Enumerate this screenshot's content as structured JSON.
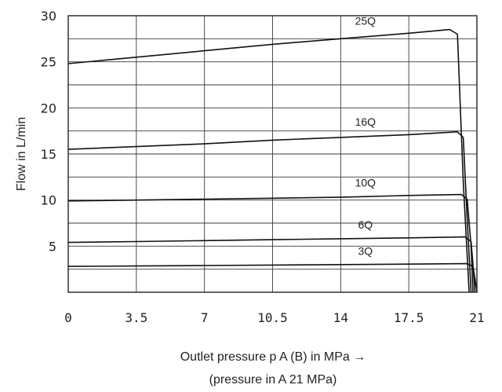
{
  "chart_data": {
    "type": "line",
    "title": "",
    "xlabel": "Outlet pressure p A (B) in MPa →",
    "xlabel_note": "(pressure in A 21 MPa)",
    "ylabel": "Flow in L/min",
    "xlim": [
      0,
      21
    ],
    "ylim": [
      0,
      30
    ],
    "x_ticks": [
      0,
      3.5,
      7,
      10.5,
      14,
      17.5,
      21
    ],
    "x_tick_labels": [
      "0",
      "3.5",
      "7",
      "10.5",
      "14",
      "17.5",
      "21"
    ],
    "y_ticks": [
      5,
      10,
      15,
      20,
      25,
      30
    ],
    "y_tick_labels": [
      "5",
      "10",
      "15",
      "20",
      "25",
      "30"
    ],
    "x_grid": [
      3.5,
      7,
      10.5,
      14,
      17.5
    ],
    "y_grid": [
      2.5,
      5,
      7.5,
      10,
      12.5,
      15,
      17.5,
      20,
      22.5,
      25,
      27.5
    ],
    "grid": true,
    "line_color": "#111111",
    "series": [
      {
        "name": "25Q",
        "x": [
          0,
          3.5,
          7,
          10.5,
          14,
          17.5,
          19.6,
          20.0,
          20.3,
          20.6
        ],
        "y": [
          24.8,
          25.5,
          26.2,
          26.9,
          27.5,
          28.1,
          28.5,
          28.0,
          12.0,
          0
        ]
      },
      {
        "name": "16Q",
        "x": [
          0,
          3.5,
          7,
          10.5,
          14,
          17.5,
          20.0,
          20.3,
          20.5,
          20.7
        ],
        "y": [
          15.5,
          15.8,
          16.1,
          16.5,
          16.8,
          17.1,
          17.4,
          16.8,
          8.0,
          0
        ]
      },
      {
        "name": "10Q",
        "x": [
          0,
          3.5,
          7,
          10.5,
          14,
          17.5,
          20.2,
          20.5,
          20.7,
          20.8
        ],
        "y": [
          9.9,
          10.0,
          10.1,
          10.2,
          10.3,
          10.5,
          10.6,
          10.1,
          5.0,
          0
        ]
      },
      {
        "name": "6Q",
        "x": [
          0,
          3.5,
          7,
          10.5,
          14,
          17.5,
          20.4,
          20.7,
          20.8,
          20.9
        ],
        "y": [
          5.4,
          5.5,
          5.6,
          5.7,
          5.8,
          5.9,
          6.0,
          5.5,
          3.0,
          0
        ]
      },
      {
        "name": "3Q",
        "x": [
          0,
          3.5,
          7,
          10.5,
          14,
          17.5,
          20.5,
          20.8,
          20.9,
          21.0
        ],
        "y": [
          2.8,
          2.85,
          2.9,
          2.95,
          3.0,
          3.05,
          3.1,
          2.8,
          1.5,
          0
        ]
      }
    ]
  }
}
